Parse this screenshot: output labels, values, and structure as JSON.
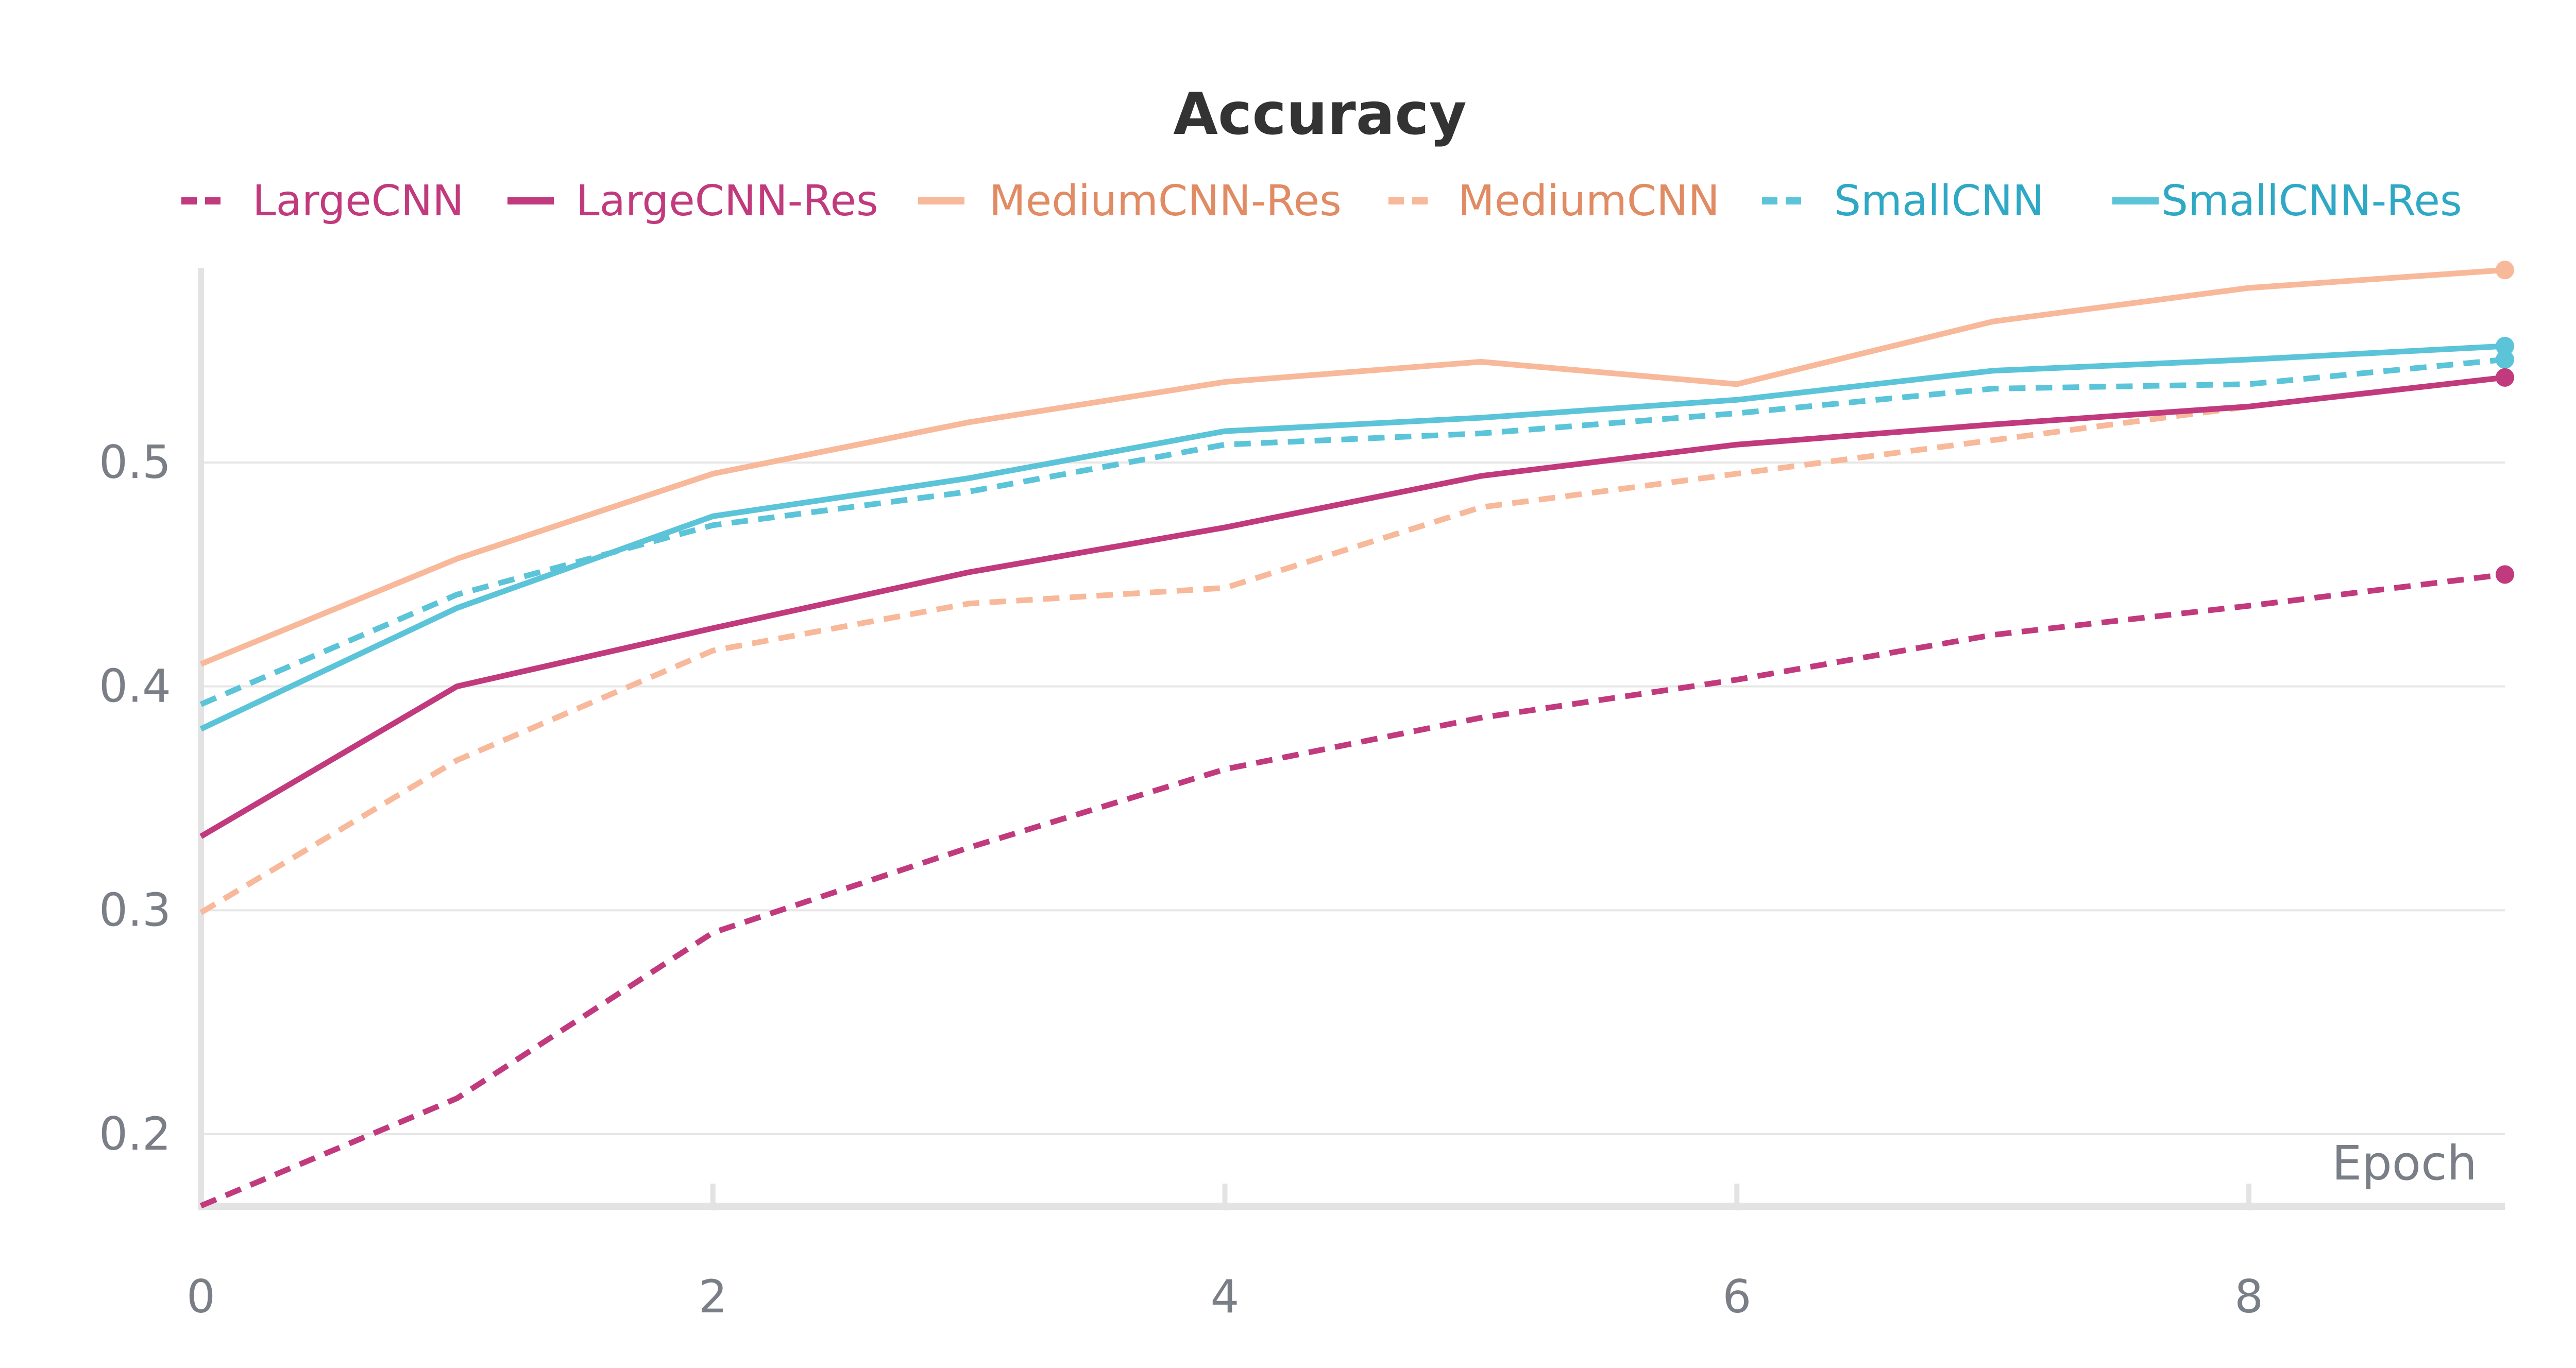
{
  "chart_data": {
    "type": "line",
    "title": "Accuracy",
    "xlabel": "Epoch",
    "ylabel": "",
    "x": [
      0,
      1,
      2,
      3,
      4,
      5,
      6,
      7,
      8,
      9
    ],
    "xlim": [
      0,
      9
    ],
    "ylim": [
      0.168,
      0.586
    ],
    "xticks": [
      "0",
      "2",
      "4",
      "6",
      "8"
    ],
    "yticks": [
      "0.2",
      "0.3",
      "0.4",
      "0.5"
    ],
    "grid": "horizontal",
    "legend_position": "top",
    "series": [
      {
        "name": "LargeCNN",
        "color": "#c13a7d",
        "dash": "dashed",
        "values": [
          0.168,
          0.216,
          0.29,
          0.328,
          0.363,
          0.386,
          0.403,
          0.423,
          0.436,
          0.45
        ]
      },
      {
        "name": "LargeCNN-Res",
        "color": "#c13a7d",
        "dash": "solid",
        "values": [
          0.333,
          0.4,
          0.426,
          0.451,
          0.471,
          0.494,
          0.508,
          0.517,
          0.525,
          0.538
        ]
      },
      {
        "name": "MediumCNN-Res",
        "color": "#f8b89a",
        "dash": "solid",
        "values": [
          0.41,
          0.457,
          0.495,
          0.518,
          0.536,
          0.545,
          0.535,
          0.563,
          0.578,
          0.586
        ]
      },
      {
        "name": "MediumCNN",
        "color": "#f8b89a",
        "dash": "dashed",
        "values": [
          0.299,
          0.367,
          0.416,
          0.437,
          0.444,
          0.48,
          0.495,
          0.51,
          0.525,
          0.538
        ]
      },
      {
        "name": "SmallCNN",
        "color": "#5bc4d8",
        "dash": "dashed",
        "values": [
          0.392,
          0.441,
          0.472,
          0.487,
          0.508,
          0.513,
          0.522,
          0.533,
          0.535,
          0.546
        ]
      },
      {
        "name": "SmallCNN-Res",
        "color": "#5bc4d8",
        "dash": "solid",
        "values": [
          0.381,
          0.435,
          0.476,
          0.493,
          0.514,
          0.52,
          0.528,
          0.541,
          0.546,
          0.552
        ]
      }
    ],
    "legend_text_colors": {
      "LargeCNN": "#c13a7d",
      "LargeCNN-Res": "#c13a7d",
      "MediumCNN-Res": "#e08b63",
      "MediumCNN": "#e08b63",
      "SmallCNN": "#2ea8c4",
      "SmallCNN-Res": "#2ea8c4"
    }
  }
}
